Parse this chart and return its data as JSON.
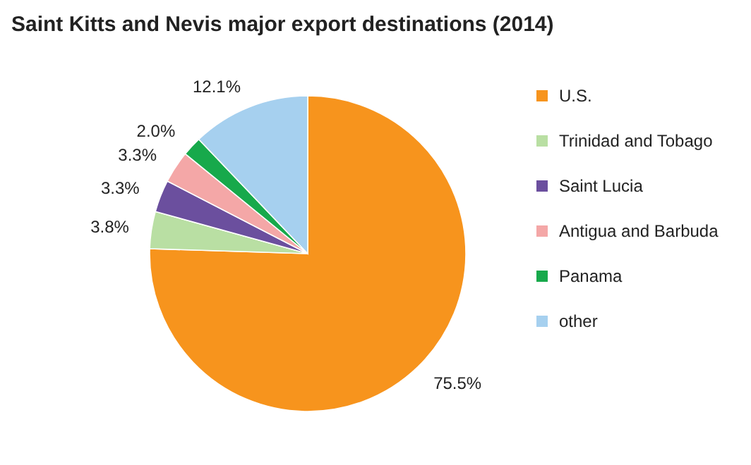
{
  "chart_data": {
    "type": "pie",
    "title": "Saint Kitts and Nevis major export destinations (2014)",
    "categories": [
      "U.S.",
      "Trinidad and Tobago",
      "Saint Lucia",
      "Antigua and Barbuda",
      "Panama",
      "other"
    ],
    "values": [
      75.5,
      3.8,
      3.3,
      3.3,
      2.0,
      12.1
    ],
    "colors": [
      "#f7941d",
      "#b9dfa3",
      "#6b4f9e",
      "#f4a7a7",
      "#17a94b",
      "#a6d0ef"
    ],
    "value_labels": [
      "75.5%",
      "3.8%",
      "3.3%",
      "3.3%",
      "2.0%",
      "12.1%"
    ],
    "legend": "right"
  }
}
